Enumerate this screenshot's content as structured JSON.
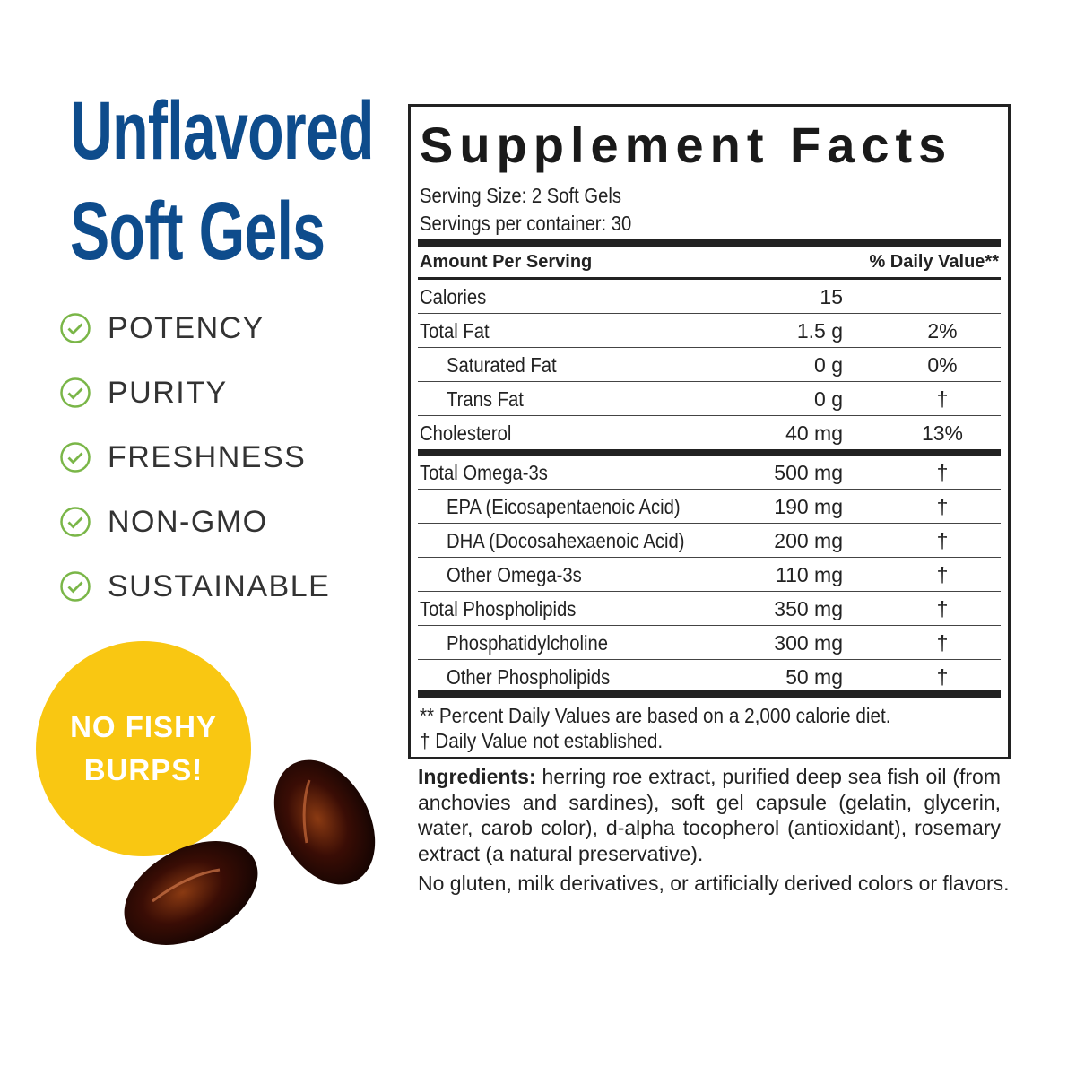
{
  "headline": {
    "line1": "Unflavored",
    "line2": "Soft Gels",
    "color": "#0e4c8c"
  },
  "features": {
    "icon": "check-circle-icon",
    "color": "#7ab648",
    "items": [
      "POTENCY",
      "PURITY",
      "FRESHNESS",
      "NON-GMO",
      "SUSTAINABLE"
    ]
  },
  "badge": {
    "line1": "NO FISHY",
    "line2": "BURPS!",
    "color": "#f9c712"
  },
  "facts": {
    "title": "Supplement Facts",
    "serving_size": "Serving Size: 2 Soft Gels",
    "servings_per_container": "Servings per container: 30",
    "header_amount": "Amount Per Serving",
    "header_dv": "% Daily Value**",
    "rows": [
      {
        "name": "Calories",
        "amount": "15",
        "dv": ""
      },
      {
        "name": "Total Fat",
        "amount": "1.5 g",
        "dv": "2%"
      },
      {
        "name": "Saturated Fat",
        "amount": "0 g",
        "dv": "0%"
      },
      {
        "name": "Trans Fat",
        "amount": "0 g",
        "dv": "†"
      },
      {
        "name": "Cholesterol",
        "amount": "40 mg",
        "dv": "13%"
      },
      {
        "name": "Total Omega-3s",
        "amount": "500 mg",
        "dv": "†"
      },
      {
        "name": "EPA (Eicosapentaenoic Acid)",
        "amount": "190 mg",
        "dv": "†"
      },
      {
        "name": "DHA (Docosahexaenoic Acid)",
        "amount": "200 mg",
        "dv": "†"
      },
      {
        "name": "Other Omega-3s",
        "amount": "110 mg",
        "dv": "†"
      },
      {
        "name": "Total Phospholipids",
        "amount": "350 mg",
        "dv": "†"
      },
      {
        "name": "Phosphatidylcholine",
        "amount": "300 mg",
        "dv": "†"
      },
      {
        "name": "Other Phospholipids",
        "amount": "50 mg",
        "dv": "†"
      }
    ],
    "footnote1": "** Percent Daily Values are based on a 2,000 calorie diet.",
    "footnote2": "†  Daily Value not established."
  },
  "ingredients": {
    "label": "Ingredients:",
    "text": " herring roe extract, purified deep sea fish oil (from anchovies and sardines), soft gel capsule (gelatin, glycerin, water, carob color), d-alpha tocopherol (antioxidant), rosemary extract (a natural preservative)."
  },
  "disclaimer": "No gluten, milk derivatives, or artificially derived colors or flavors."
}
